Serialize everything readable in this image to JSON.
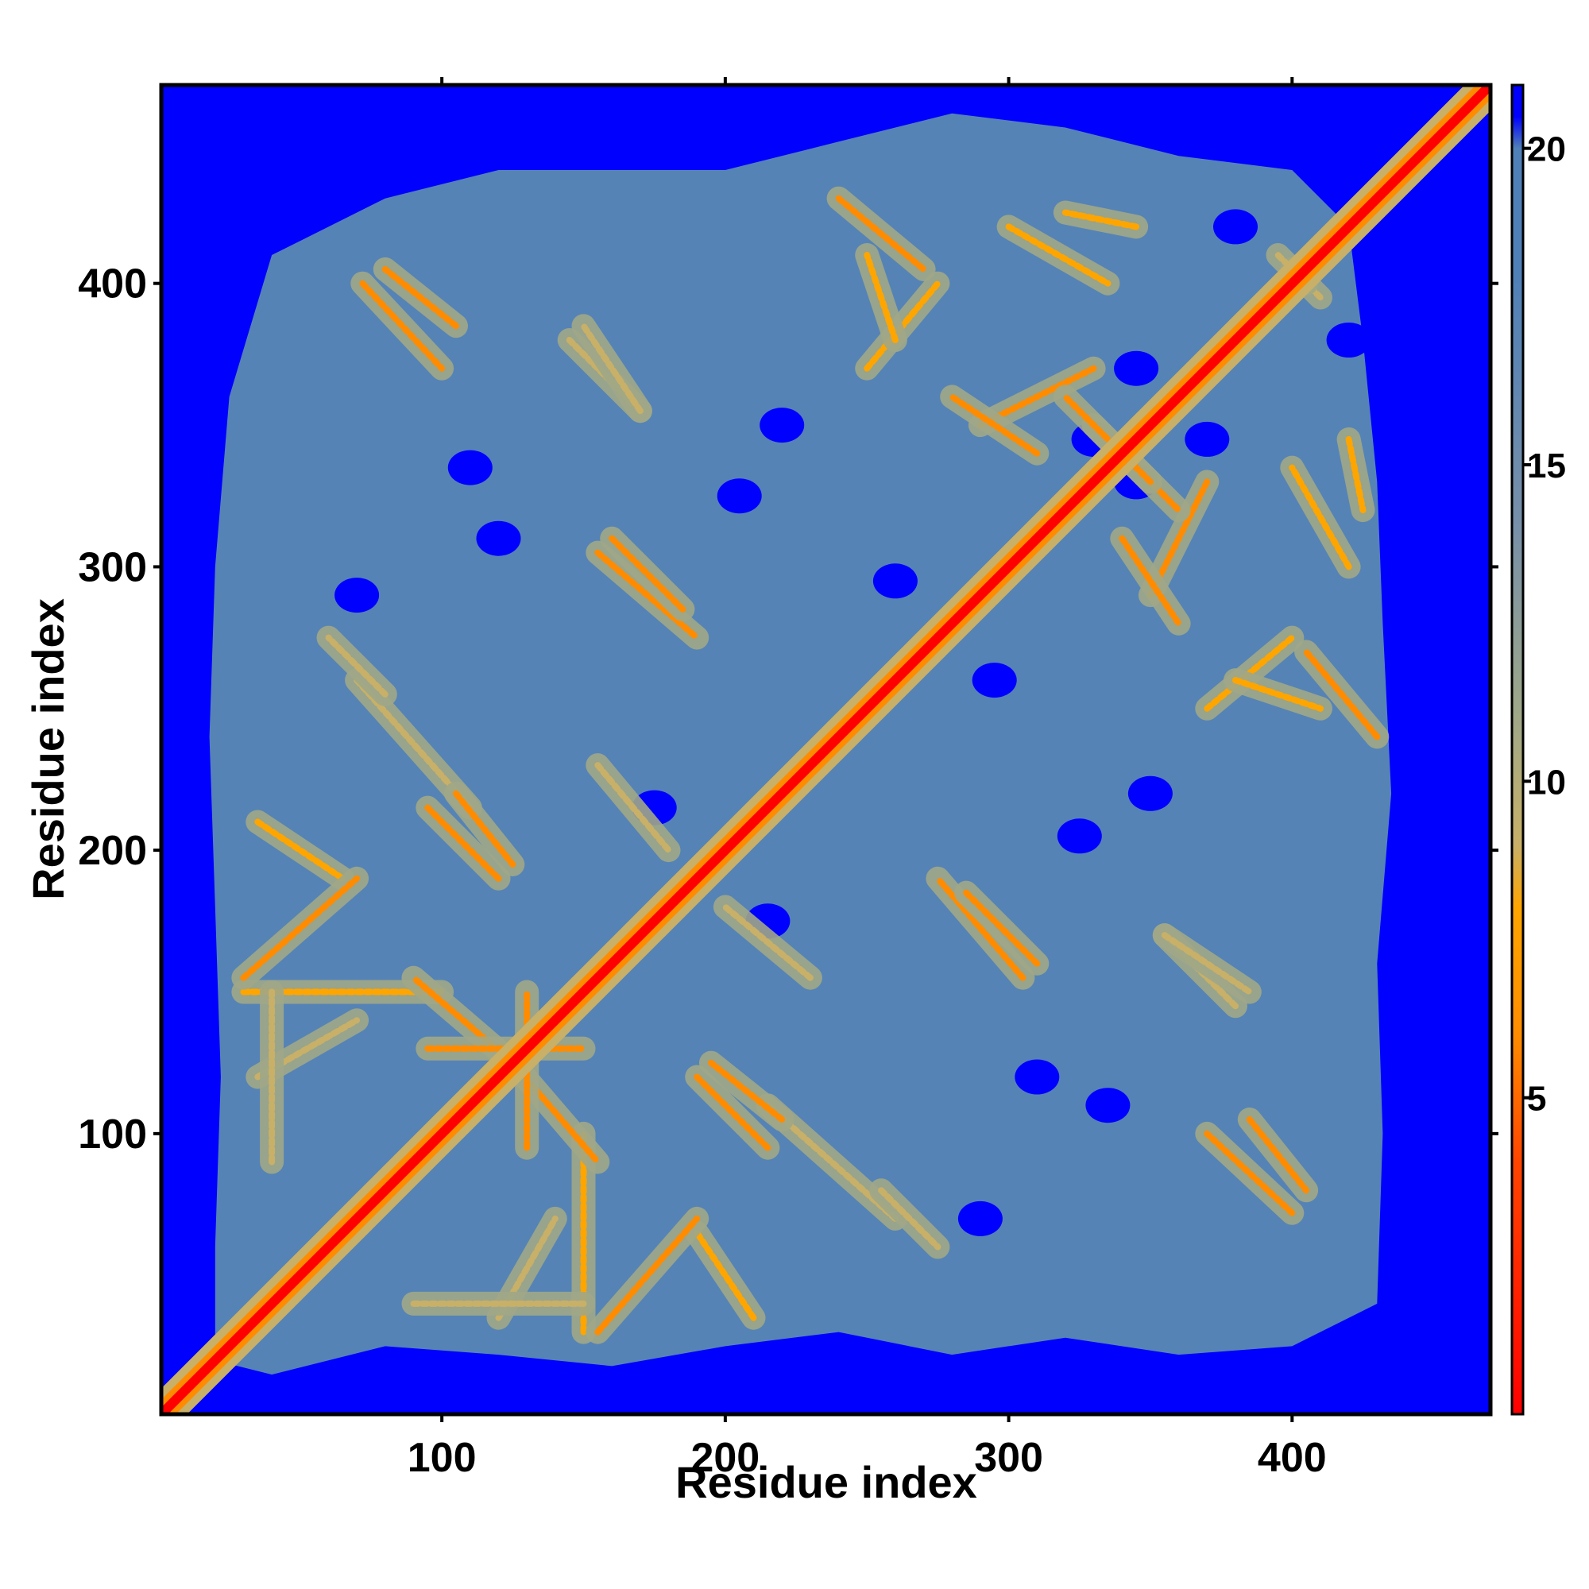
{
  "chart_data": {
    "type": "heatmap",
    "title": "",
    "xlabel": "Residue index",
    "ylabel": "Residue index",
    "xlim": [
      1,
      470
    ],
    "ylim": [
      1,
      470
    ],
    "x_ticks": [
      100,
      200,
      300,
      400
    ],
    "y_ticks": [
      100,
      200,
      300,
      400
    ],
    "x_tick_labels": [
      "100",
      "200",
      "300",
      "400"
    ],
    "y_tick_labels": [
      "100",
      "200",
      "300",
      "400"
    ],
    "colorbar": {
      "range": [
        0,
        21
      ],
      "ticks": [
        5,
        10,
        15,
        20
      ],
      "tick_labels": [
        "5",
        "10",
        "15",
        "20"
      ],
      "colors": [
        {
          "value": 0,
          "color": "#ff0000"
        },
        {
          "value": 4,
          "color": "#ff4500"
        },
        {
          "value": 6,
          "color": "#ff8c00"
        },
        {
          "value": 8,
          "color": "#ffa500"
        },
        {
          "value": 9,
          "color": "#c8b068"
        },
        {
          "value": 11,
          "color": "#a0a888"
        },
        {
          "value": 14,
          "color": "#7890a8"
        },
        {
          "value": 18,
          "color": "#5080b8"
        },
        {
          "value": 20,
          "color": "#5080b8"
        },
        {
          "value": 20.5,
          "color": "#0000ff"
        },
        {
          "value": 21,
          "color": "#0000ff"
        }
      ]
    },
    "background_color": "#0000ff",
    "fill_color": "#5583b6",
    "matrix_symmetric": true,
    "contact_segments": [
      {
        "from": [
          155,
          305
        ],
        "to": [
          190,
          275
        ],
        "min_distance": 5
      },
      {
        "from": [
          72,
          400
        ],
        "to": [
          100,
          370
        ],
        "min_distance": 6
      },
      {
        "from": [
          145,
          380
        ],
        "to": [
          170,
          355
        ],
        "min_distance": 9
      },
      {
        "from": [
          70,
          260
        ],
        "to": [
          110,
          215
        ],
        "min_distance": 9
      },
      {
        "from": [
          105,
          220
        ],
        "to": [
          125,
          195
        ],
        "min_distance": 6
      },
      {
        "from": [
          35,
          210
        ],
        "to": [
          65,
          190
        ],
        "min_distance": 7
      },
      {
        "from": [
          35,
          120
        ],
        "to": [
          70,
          140
        ],
        "min_distance": 9
      },
      {
        "from": [
          30,
          150
        ],
        "to": [
          100,
          150
        ],
        "min_distance": 7
      },
      {
        "from": [
          125,
          125
        ],
        "to": [
          155,
          90
        ],
        "min_distance": 6
      },
      {
        "from": [
          95,
          130
        ],
        "to": [
          150,
          130
        ],
        "min_distance": 6
      },
      {
        "from": [
          90,
          40
        ],
        "to": [
          150,
          40
        ],
        "min_distance": 9
      },
      {
        "from": [
          155,
          30
        ],
        "to": [
          190,
          70
        ],
        "min_distance": 6
      },
      {
        "from": [
          190,
          120
        ],
        "to": [
          215,
          95
        ],
        "min_distance": 6
      },
      {
        "from": [
          155,
          230
        ],
        "to": [
          180,
          200
        ],
        "min_distance": 9
      },
      {
        "from": [
          240,
          430
        ],
        "to": [
          270,
          405
        ],
        "min_distance": 6
      },
      {
        "from": [
          250,
          370
        ],
        "to": [
          275,
          400
        ],
        "min_distance": 7
      },
      {
        "from": [
          300,
          420
        ],
        "to": [
          335,
          400
        ],
        "min_distance": 7
      },
      {
        "from": [
          290,
          350
        ],
        "to": [
          330,
          370
        ],
        "min_distance": 6
      },
      {
        "from": [
          330,
          350
        ],
        "to": [
          360,
          320
        ],
        "min_distance": 6
      },
      {
        "from": [
          340,
          310
        ],
        "to": [
          360,
          280
        ],
        "min_distance": 6
      },
      {
        "from": [
          380,
          260
        ],
        "to": [
          410,
          250
        ],
        "min_distance": 7
      },
      {
        "from": [
          420,
          345
        ],
        "to": [
          425,
          320
        ],
        "min_distance": 7
      },
      {
        "from": [
          285,
          185
        ],
        "to": [
          310,
          160
        ],
        "min_distance": 6
      },
      {
        "from": [
          355,
          170
        ],
        "to": [
          385,
          150
        ],
        "min_distance": 9
      },
      {
        "from": [
          385,
          105
        ],
        "to": [
          405,
          80
        ],
        "min_distance": 6
      },
      {
        "from": [
          255,
          80
        ],
        "to": [
          275,
          60
        ],
        "min_distance": 9
      },
      {
        "from": [
          400,
          405
        ],
        "to": [
          410,
          395
        ],
        "min_distance": 9
      }
    ]
  }
}
